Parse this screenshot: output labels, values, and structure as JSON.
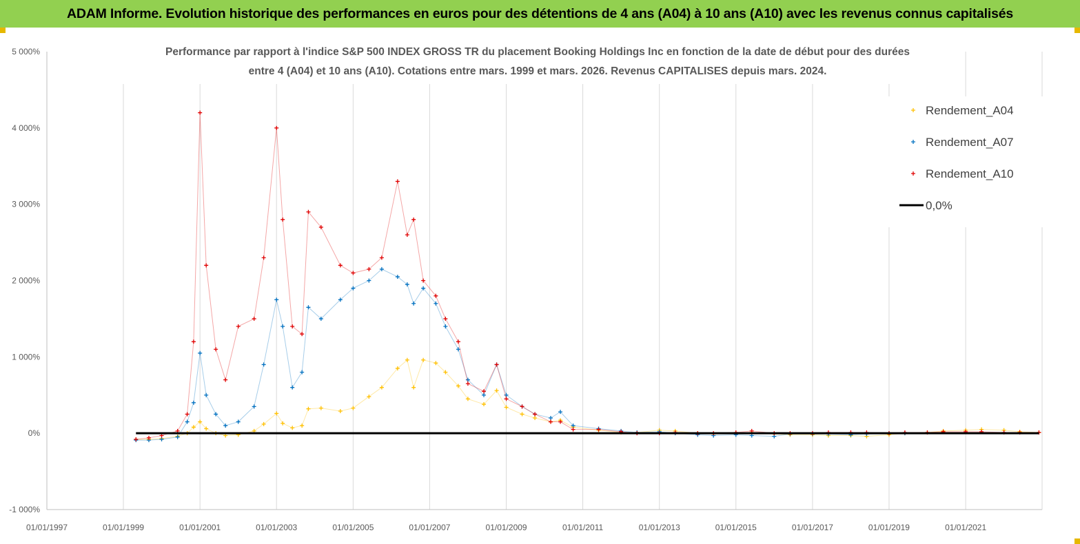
{
  "banner": {
    "title": "ADAM Informe. Evolution historique des performances en euros pour des détentions de 4 ans (A04) à 10 ans (A10) avec les revenus connus capitalisés"
  },
  "colors": {
    "banner": "#92d050",
    "A04": "#ffc000",
    "A07": "#0070c0",
    "A10": "#e00000",
    "zero_line": "#000000"
  },
  "chart_data": {
    "type": "scatter",
    "title": "Performance par rapport à l'indice S&P 500 INDEX GROSS TR  du placement Booking Holdings Inc en fonction de la date de début pour des durées",
    "subtitle": "entre 4 (A04) et 10 ans (A10).  Cotations entre mars. 1999 et mars. 2026. Revenus CAPITALISES depuis mars. 2024.",
    "xlabel": "",
    "ylabel": "",
    "xlim": [
      "1997-01-01",
      "2022-12-31"
    ],
    "ylim": [
      -1000,
      5000
    ],
    "y_ticks": [
      -1000,
      0,
      1000,
      2000,
      3000,
      4000,
      5000
    ],
    "y_tick_labels": [
      "-1 000%",
      "0%",
      "1 000%",
      "2 000%",
      "3 000%",
      "4 000%",
      "5 000%"
    ],
    "x_tick_labels": [
      "01/01/1997",
      "01/01/1999",
      "01/01/2001",
      "01/01/2003",
      "01/01/2005",
      "01/01/2007",
      "01/01/2009",
      "01/01/2011",
      "01/01/2013",
      "01/01/2015",
      "01/01/2017",
      "01/01/2019",
      "01/01/2021"
    ],
    "grid": "vertical",
    "legend_position": "top-right",
    "marker": "+",
    "series": [
      {
        "name": "Rendement_A04",
        "color": "#ffc000",
        "points": [
          [
            "1999-05-01",
            -80
          ],
          [
            "1999-09-01",
            -80
          ],
          [
            "2000-01-01",
            -70
          ],
          [
            "2000-06-01",
            -40
          ],
          [
            "2000-09-01",
            0
          ],
          [
            "2000-11-01",
            80
          ],
          [
            "2001-01-01",
            150
          ],
          [
            "2001-03-01",
            60
          ],
          [
            "2001-06-01",
            0
          ],
          [
            "2001-09-01",
            -30
          ],
          [
            "2002-01-01",
            -20
          ],
          [
            "2002-06-01",
            30
          ],
          [
            "2002-09-01",
            120
          ],
          [
            "2003-01-01",
            260
          ],
          [
            "2003-03-01",
            130
          ],
          [
            "2003-06-01",
            70
          ],
          [
            "2003-09-01",
            100
          ],
          [
            "2003-11-01",
            320
          ],
          [
            "2004-03-01",
            330
          ],
          [
            "2004-09-01",
            290
          ],
          [
            "2005-01-01",
            330
          ],
          [
            "2005-06-01",
            480
          ],
          [
            "2005-10-01",
            600
          ],
          [
            "2006-03-01",
            850
          ],
          [
            "2006-06-01",
            960
          ],
          [
            "2006-08-01",
            600
          ],
          [
            "2006-11-01",
            960
          ],
          [
            "2007-03-01",
            920
          ],
          [
            "2007-06-01",
            800
          ],
          [
            "2007-10-01",
            620
          ],
          [
            "2008-01-01",
            450
          ],
          [
            "2008-06-01",
            380
          ],
          [
            "2008-10-01",
            560
          ],
          [
            "2009-01-01",
            340
          ],
          [
            "2009-06-01",
            250
          ],
          [
            "2009-10-01",
            200
          ],
          [
            "2010-03-01",
            150
          ],
          [
            "2010-06-01",
            170
          ],
          [
            "2010-10-01",
            80
          ],
          [
            "2011-06-01",
            40
          ],
          [
            "2012-01-01",
            10
          ],
          [
            "2012-06-01",
            10
          ],
          [
            "2013-01-01",
            40
          ],
          [
            "2013-06-01",
            30
          ],
          [
            "2014-01-01",
            0
          ],
          [
            "2014-06-01",
            -10
          ],
          [
            "2015-01-01",
            0
          ],
          [
            "2015-06-01",
            10
          ],
          [
            "2016-01-01",
            -10
          ],
          [
            "2016-06-01",
            -20
          ],
          [
            "2017-01-01",
            -20
          ],
          [
            "2017-06-01",
            -30
          ],
          [
            "2018-01-01",
            -30
          ],
          [
            "2018-06-01",
            -40
          ],
          [
            "2019-01-01",
            -20
          ],
          [
            "2019-06-01",
            0
          ],
          [
            "2020-01-01",
            10
          ],
          [
            "2020-06-01",
            30
          ],
          [
            "2021-01-01",
            40
          ],
          [
            "2021-06-01",
            50
          ],
          [
            "2022-01-01",
            40
          ],
          [
            "2022-06-01",
            20
          ],
          [
            "2022-12-01",
            10
          ]
        ]
      },
      {
        "name": "Rendement_A07",
        "color": "#0070c0",
        "points": [
          [
            "1999-05-01",
            -90
          ],
          [
            "1999-09-01",
            -90
          ],
          [
            "2000-01-01",
            -80
          ],
          [
            "2000-06-01",
            -50
          ],
          [
            "2000-09-01",
            150
          ],
          [
            "2000-11-01",
            400
          ],
          [
            "2001-01-01",
            1050
          ],
          [
            "2001-03-01",
            500
          ],
          [
            "2001-06-01",
            250
          ],
          [
            "2001-09-01",
            100
          ],
          [
            "2002-01-01",
            150
          ],
          [
            "2002-06-01",
            350
          ],
          [
            "2002-09-01",
            900
          ],
          [
            "2003-01-01",
            1750
          ],
          [
            "2003-03-01",
            1400
          ],
          [
            "2003-06-01",
            600
          ],
          [
            "2003-09-01",
            800
          ],
          [
            "2003-11-01",
            1650
          ],
          [
            "2004-03-01",
            1500
          ],
          [
            "2004-09-01",
            1750
          ],
          [
            "2005-01-01",
            1900
          ],
          [
            "2005-06-01",
            2000
          ],
          [
            "2005-10-01",
            2150
          ],
          [
            "2006-03-01",
            2050
          ],
          [
            "2006-06-01",
            1950
          ],
          [
            "2006-08-01",
            1700
          ],
          [
            "2006-11-01",
            1900
          ],
          [
            "2007-03-01",
            1700
          ],
          [
            "2007-06-01",
            1400
          ],
          [
            "2007-10-01",
            1100
          ],
          [
            "2008-01-01",
            700
          ],
          [
            "2008-06-01",
            500
          ],
          [
            "2008-10-01",
            900
          ],
          [
            "2009-01-01",
            500
          ],
          [
            "2009-06-01",
            350
          ],
          [
            "2009-10-01",
            250
          ],
          [
            "2010-03-01",
            200
          ],
          [
            "2010-06-01",
            280
          ],
          [
            "2010-10-01",
            100
          ],
          [
            "2011-06-01",
            60
          ],
          [
            "2012-01-01",
            30
          ],
          [
            "2012-06-01",
            10
          ],
          [
            "2013-01-01",
            20
          ],
          [
            "2013-06-01",
            0
          ],
          [
            "2014-01-01",
            -20
          ],
          [
            "2014-06-01",
            -30
          ],
          [
            "2015-01-01",
            -20
          ],
          [
            "2015-06-01",
            -30
          ],
          [
            "2016-01-01",
            -40
          ],
          [
            "2016-06-01",
            -10
          ],
          [
            "2017-01-01",
            -10
          ],
          [
            "2017-06-01",
            -10
          ],
          [
            "2018-01-01",
            -20
          ],
          [
            "2018-06-01",
            -10
          ],
          [
            "2019-01-01",
            0
          ],
          [
            "2019-06-01",
            0
          ]
        ]
      },
      {
        "name": "Rendement_A10",
        "color": "#e00000",
        "points": [
          [
            "1999-05-01",
            -80
          ],
          [
            "1999-09-01",
            -60
          ],
          [
            "2000-01-01",
            -30
          ],
          [
            "2000-06-01",
            30
          ],
          [
            "2000-09-01",
            250
          ],
          [
            "2000-11-01",
            1200
          ],
          [
            "2001-01-01",
            4200
          ],
          [
            "2001-03-01",
            2200
          ],
          [
            "2001-06-01",
            1100
          ],
          [
            "2001-09-01",
            700
          ],
          [
            "2002-01-01",
            1400
          ],
          [
            "2002-06-01",
            1500
          ],
          [
            "2002-09-01",
            2300
          ],
          [
            "2003-01-01",
            4000
          ],
          [
            "2003-03-01",
            2800
          ],
          [
            "2003-06-01",
            1400
          ],
          [
            "2003-09-01",
            1300
          ],
          [
            "2003-11-01",
            2900
          ],
          [
            "2004-03-01",
            2700
          ],
          [
            "2004-09-01",
            2200
          ],
          [
            "2005-01-01",
            2100
          ],
          [
            "2005-06-01",
            2150
          ],
          [
            "2005-10-01",
            2300
          ],
          [
            "2006-03-01",
            3300
          ],
          [
            "2006-06-01",
            2600
          ],
          [
            "2006-08-01",
            2800
          ],
          [
            "2006-11-01",
            2000
          ],
          [
            "2007-03-01",
            1800
          ],
          [
            "2007-06-01",
            1500
          ],
          [
            "2007-10-01",
            1200
          ],
          [
            "2008-01-01",
            650
          ],
          [
            "2008-06-01",
            550
          ],
          [
            "2008-10-01",
            900
          ],
          [
            "2009-01-01",
            450
          ],
          [
            "2009-06-01",
            350
          ],
          [
            "2009-10-01",
            250
          ],
          [
            "2010-03-01",
            150
          ],
          [
            "2010-06-01",
            150
          ],
          [
            "2010-10-01",
            50
          ],
          [
            "2011-06-01",
            50
          ],
          [
            "2012-01-01",
            20
          ],
          [
            "2012-06-01",
            0
          ],
          [
            "2013-01-01",
            0
          ],
          [
            "2013-06-01",
            10
          ],
          [
            "2014-01-01",
            0
          ],
          [
            "2014-06-01",
            0
          ],
          [
            "2015-01-01",
            10
          ],
          [
            "2015-06-01",
            30
          ],
          [
            "2016-01-01",
            0
          ],
          [
            "2016-06-01",
            0
          ],
          [
            "2017-01-01",
            0
          ],
          [
            "2017-06-01",
            10
          ],
          [
            "2018-01-01",
            10
          ],
          [
            "2018-06-01",
            10
          ],
          [
            "2019-01-01",
            0
          ],
          [
            "2019-06-01",
            10
          ],
          [
            "2020-01-01",
            10
          ],
          [
            "2020-06-01",
            20
          ],
          [
            "2021-01-01",
            20
          ],
          [
            "2021-06-01",
            20
          ],
          [
            "2022-01-01",
            10
          ],
          [
            "2022-06-01",
            10
          ],
          [
            "2022-12-01",
            10
          ]
        ]
      },
      {
        "name": "0,0%",
        "color": "#000000",
        "type": "line",
        "points": [
          [
            "1999-05-01",
            0
          ],
          [
            "2022-12-01",
            0
          ]
        ]
      }
    ]
  }
}
